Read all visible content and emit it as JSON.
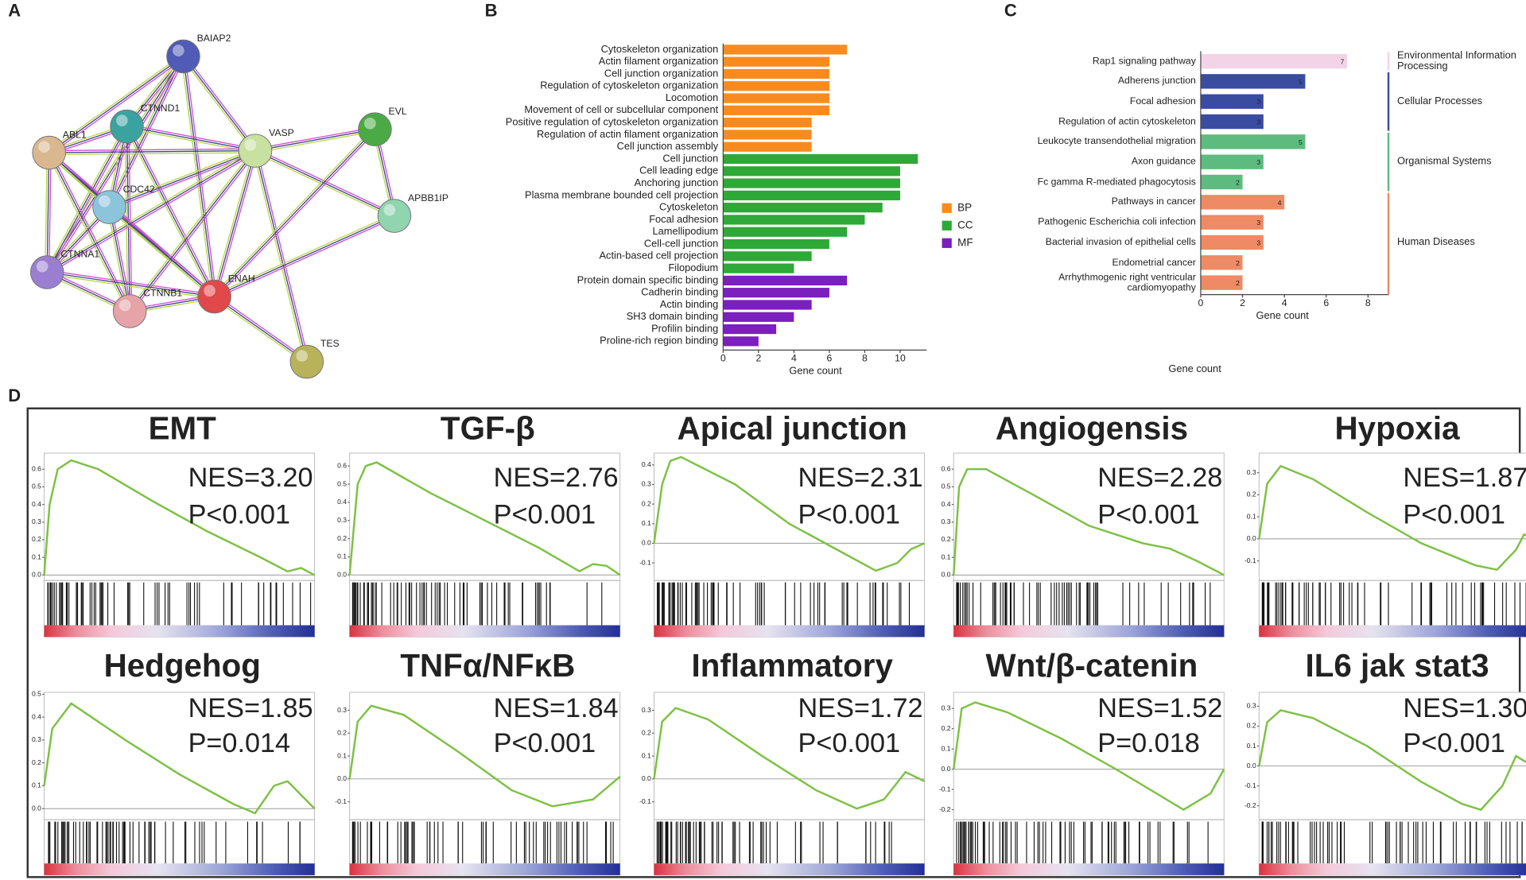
{
  "panels": [
    "A",
    "B",
    "C",
    "D"
  ],
  "network": {
    "nodes": [
      {
        "label": "BAIAP2"
      },
      {
        "label": "CTNND1"
      },
      {
        "label": "ABL1"
      },
      {
        "label": "VASP"
      },
      {
        "label": "EVL"
      },
      {
        "label": "CDC42"
      },
      {
        "label": "APBB1IP"
      },
      {
        "label": "CTNNA1"
      },
      {
        "label": "CTNNB1"
      },
      {
        "label": "ENAH"
      },
      {
        "label": "TES"
      }
    ]
  },
  "chart_data": [
    {
      "type": "bar",
      "orientation": "horizontal",
      "xlabel": "Gene count",
      "xlim": [
        0,
        11.5
      ],
      "xticks": [
        0,
        2,
        4,
        6,
        8,
        10
      ],
      "legend": "right",
      "categories": [
        "Cytoskeleton organization",
        "Actin filament organization",
        "Cell junction organization",
        "Regulation of cytoskeleton organization",
        "Locomotion",
        "Movement of cell or subcellular component",
        "Positive regulation of cytoskeleton organization",
        "Regulation of actin filament organization",
        "Cell junction assembly",
        "Cell junction",
        "Cell leading edge",
        "Anchoring junction",
        "Plasma membrane bounded cell projection",
        "Cytoskeleton",
        "Focal adhesion",
        "Lamellipodium",
        "Cell-cell junction",
        "Actin-based cell projection",
        "Filopodium",
        "Protein domain specific binding",
        "Cadherin binding",
        "Actin binding",
        "SH3 domain binding",
        "Profilin binding",
        "Proline-rich region binding"
      ],
      "series": [
        {
          "name": "BP",
          "color": "#f98b1e",
          "values": [
            7,
            6,
            6,
            6,
            6,
            6,
            5,
            5,
            5,
            null,
            null,
            null,
            null,
            null,
            null,
            null,
            null,
            null,
            null,
            null,
            null,
            null,
            null,
            null,
            null
          ]
        },
        {
          "name": "CC",
          "color": "#2ea837",
          "values": [
            null,
            null,
            null,
            null,
            null,
            null,
            null,
            null,
            null,
            11,
            10,
            10,
            10,
            9,
            8,
            7,
            6,
            5,
            4,
            null,
            null,
            null,
            null,
            null,
            null
          ]
        },
        {
          "name": "MF",
          "color": "#7b1fbd",
          "values": [
            null,
            null,
            null,
            null,
            null,
            null,
            null,
            null,
            null,
            null,
            null,
            null,
            null,
            null,
            null,
            null,
            null,
            null,
            null,
            7,
            6,
            5,
            4,
            3,
            2
          ]
        }
      ]
    },
    {
      "type": "bar",
      "orientation": "horizontal",
      "xlabel": "Gene count",
      "note": "Gene count",
      "xlim": [
        0,
        9
      ],
      "xticks": [
        0,
        2,
        4,
        6,
        8
      ],
      "legend": "bracket",
      "data_labels": true,
      "categories": [
        "Rap1 signaling pathway",
        "Adherens junction",
        "Focal adhesion",
        "Regulation of actin cytoskeleton",
        "Leukocyte transendothelial migration",
        "Axon guidance",
        "Fc gamma R-mediated phagocytosis",
        "Pathways in cancer",
        "Pathogenic Escherichia coli infection",
        "Bacterial invasion of epithelial cells",
        "Endometrial cancer",
        "Arrhythmogenic right ventricular cardiomyopathy"
      ],
      "series": [
        {
          "name": "Environmental Information Processing",
          "color": "#f3d3e6",
          "values": [
            7,
            null,
            null,
            null,
            null,
            null,
            null,
            null,
            null,
            null,
            null,
            null
          ]
        },
        {
          "name": "Cellular Processes",
          "color": "#3a4ca0",
          "values": [
            null,
            5,
            3,
            3,
            null,
            null,
            null,
            null,
            null,
            null,
            null,
            null
          ]
        },
        {
          "name": "Organismal Systems",
          "color": "#5dbb7f",
          "values": [
            null,
            null,
            null,
            null,
            5,
            3,
            2,
            null,
            null,
            null,
            null,
            null
          ]
        },
        {
          "name": "Human Diseases",
          "color": "#ee8a64",
          "values": [
            null,
            null,
            null,
            null,
            null,
            null,
            null,
            4,
            3,
            3,
            2,
            2
          ]
        }
      ]
    },
    {
      "type": "line",
      "title": "EMT",
      "annotations": [
        "NES=3.20",
        "P<0.001"
      ],
      "color": "#7cc142",
      "xlim": [
        0,
        1
      ],
      "ylim": [
        -0.02,
        0.68
      ],
      "yticks": [
        {
          "value": 0,
          "label": "0.0"
        },
        0.1,
        0.2,
        0.3,
        0.4,
        0.5,
        0.6
      ],
      "x": [
        0,
        0.02,
        0.05,
        0.1,
        0.2,
        0.4,
        0.6,
        0.8,
        0.9,
        0.95,
        1
      ],
      "values": [
        0,
        0.4,
        0.6,
        0.65,
        0.6,
        0.42,
        0.25,
        0.1,
        0.02,
        0.04,
        0
      ]
    },
    {
      "type": "line",
      "title": "TGF-β",
      "annotations": [
        "NES=2.76",
        "P<0.001"
      ],
      "color": "#7cc142",
      "xlim": [
        0,
        1
      ],
      "ylim": [
        -0.02,
        0.66
      ],
      "yticks": [
        {
          "value": 0,
          "label": "0.0"
        },
        0.1,
        0.2,
        0.3,
        0.4,
        0.5,
        0.6
      ],
      "x": [
        0,
        0.03,
        0.06,
        0.1,
        0.3,
        0.5,
        0.7,
        0.85,
        0.9,
        0.95,
        1
      ],
      "values": [
        0,
        0.5,
        0.6,
        0.62,
        0.45,
        0.3,
        0.15,
        0.02,
        0.06,
        0.05,
        0
      ]
    },
    {
      "type": "line",
      "title": "Apical junction",
      "annotations": [
        "NES=2.31",
        "P<0.001"
      ],
      "color": "#7cc142",
      "xlim": [
        0,
        1
      ],
      "ylim": [
        -0.18,
        0.45
      ],
      "yticks": [
        -0.1,
        {
          "value": 0,
          "label": "0.0"
        },
        0.1,
        0.2,
        0.3,
        0.4
      ],
      "x": [
        0,
        0.03,
        0.06,
        0.1,
        0.3,
        0.5,
        0.7,
        0.82,
        0.9,
        0.95,
        1
      ],
      "values": [
        0,
        0.3,
        0.42,
        0.44,
        0.3,
        0.1,
        -0.05,
        -0.14,
        -0.1,
        -0.03,
        0
      ]
    },
    {
      "type": "line",
      "title": "Angiogensis",
      "annotations": [
        "NES=2.28",
        "P<0.001"
      ],
      "color": "#7cc142",
      "xlim": [
        0,
        1
      ],
      "ylim": [
        -0.02,
        0.68
      ],
      "yticks": [
        {
          "value": 0,
          "label": "0.0"
        },
        0.1,
        0.2,
        0.3,
        0.4,
        0.5,
        0.6
      ],
      "x": [
        0,
        0.02,
        0.05,
        0.12,
        0.3,
        0.5,
        0.7,
        0.8,
        0.9,
        1
      ],
      "values": [
        0,
        0.5,
        0.6,
        0.6,
        0.45,
        0.28,
        0.18,
        0.15,
        0.08,
        0
      ]
    },
    {
      "type": "line",
      "title": "Hypoxia",
      "annotations": [
        "NES=1.87",
        "P<0.001"
      ],
      "color": "#7cc142",
      "xlim": [
        0,
        1
      ],
      "ylim": [
        -0.18,
        0.38
      ],
      "yticks": [
        -0.1,
        {
          "value": 0,
          "label": "0.0"
        },
        0.1,
        0.2,
        0.3
      ],
      "x": [
        0,
        0.03,
        0.08,
        0.2,
        0.4,
        0.6,
        0.8,
        0.88,
        0.95,
        0.98,
        1
      ],
      "values": [
        0,
        0.25,
        0.33,
        0.27,
        0.12,
        -0.02,
        -0.12,
        -0.14,
        -0.05,
        0.02,
        0.01
      ]
    },
    {
      "type": "line",
      "title": "Hedgehog",
      "annotations": [
        "NES=1.85",
        "P=0.014"
      ],
      "color": "#7cc142",
      "xlim": [
        0,
        1
      ],
      "ylim": [
        -0.04,
        0.5
      ],
      "yticks": [
        {
          "value": 0,
          "label": "0.0"
        },
        0.1,
        0.2,
        0.3,
        0.4,
        0.5
      ],
      "x": [
        0,
        0.03,
        0.1,
        0.3,
        0.5,
        0.7,
        0.78,
        0.85,
        0.9,
        1
      ],
      "values": [
        0.1,
        0.35,
        0.46,
        0.3,
        0.15,
        0.02,
        -0.02,
        0.1,
        0.12,
        0
      ]
    },
    {
      "type": "line",
      "title": "TNFα/NFκB",
      "annotations": [
        "NES=1.84",
        "P<0.001"
      ],
      "color": "#7cc142",
      "xlim": [
        0,
        1
      ],
      "ylim": [
        -0.17,
        0.37
      ],
      "yticks": [
        -0.1,
        {
          "value": 0,
          "label": "0.0"
        },
        0.1,
        0.2,
        0.3
      ],
      "x": [
        0,
        0.03,
        0.08,
        0.2,
        0.4,
        0.6,
        0.75,
        0.9,
        1
      ],
      "values": [
        0,
        0.25,
        0.32,
        0.28,
        0.12,
        -0.05,
        -0.12,
        -0.09,
        0.01
      ]
    },
    {
      "type": "line",
      "title": "Inflammatory",
      "annotations": [
        "NES=1.72",
        "P<0.001"
      ],
      "color": "#7cc142",
      "xlim": [
        0,
        1
      ],
      "ylim": [
        -0.17,
        0.37
      ],
      "yticks": [
        -0.1,
        {
          "value": 0,
          "label": "0.0"
        },
        0.1,
        0.2,
        0.3
      ],
      "x": [
        0,
        0.03,
        0.08,
        0.2,
        0.4,
        0.6,
        0.75,
        0.85,
        0.93,
        1
      ],
      "values": [
        0,
        0.25,
        0.31,
        0.26,
        0.1,
        -0.05,
        -0.13,
        -0.09,
        0.03,
        -0.01
      ]
    },
    {
      "type": "line",
      "title": "Wnt/β-catenin",
      "annotations": [
        "NES=1.52",
        "P=0.018"
      ],
      "color": "#7cc142",
      "xlim": [
        0,
        1
      ],
      "ylim": [
        -0.24,
        0.37
      ],
      "yticks": [
        -0.2,
        -0.1,
        {
          "value": 0,
          "label": "0.0"
        },
        0.1,
        0.2,
        0.3
      ],
      "x": [
        0,
        0.03,
        0.08,
        0.2,
        0.4,
        0.6,
        0.75,
        0.85,
        0.95,
        1
      ],
      "values": [
        0,
        0.3,
        0.33,
        0.28,
        0.15,
        0,
        -0.12,
        -0.2,
        -0.12,
        0
      ]
    },
    {
      "type": "line",
      "title": "IL6 jak stat3",
      "annotations": [
        "NES=1.30",
        "P<0.001"
      ],
      "color": "#7cc142",
      "xlim": [
        0,
        1
      ],
      "ylim": [
        -0.26,
        0.36
      ],
      "yticks": [
        -0.2,
        -0.1,
        {
          "value": 0,
          "label": "0.0"
        },
        0.1,
        0.2,
        0.3
      ],
      "x": [
        0,
        0.03,
        0.08,
        0.2,
        0.4,
        0.6,
        0.75,
        0.82,
        0.9,
        0.95,
        1
      ],
      "values": [
        0,
        0.22,
        0.28,
        0.24,
        0.1,
        -0.08,
        -0.19,
        -0.22,
        -0.1,
        0.05,
        0.01
      ]
    }
  ]
}
